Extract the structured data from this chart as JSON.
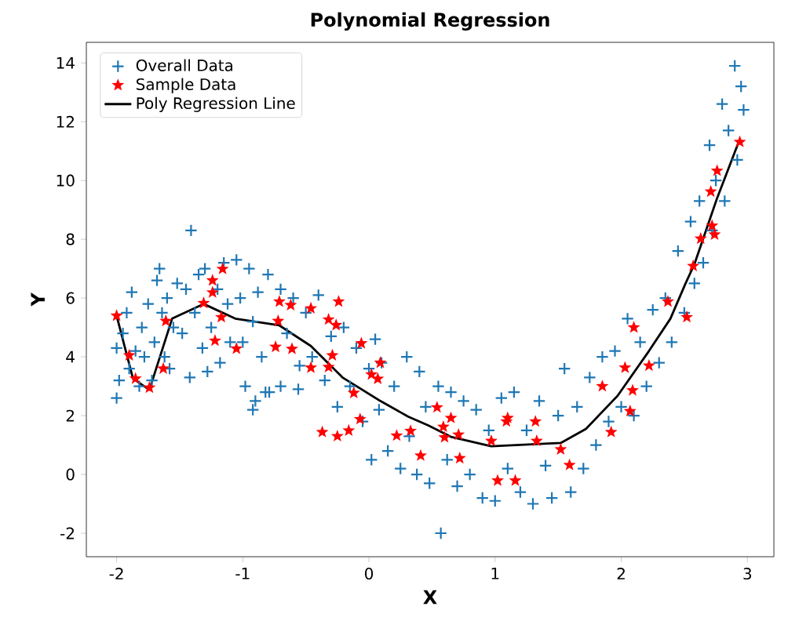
{
  "chart_data": {
    "type": "scatter",
    "title": "Polynomial Regression",
    "xlabel": "X",
    "ylabel": "Y",
    "xlim": [
      -2.24,
      3.21
    ],
    "ylim": [
      -2.8,
      14.7
    ],
    "xticks": [
      -2,
      -1,
      0,
      1,
      2,
      3
    ],
    "yticks": [
      -2,
      0,
      2,
      4,
      6,
      8,
      10,
      12,
      14
    ],
    "legend": "top left",
    "grid": false,
    "series": [
      {
        "name": "Overall Data",
        "type": "scatter",
        "marker": "cross",
        "color": "#1f77b4",
        "x": [
          -2.0,
          -2.0,
          -1.98,
          -1.95,
          -1.92,
          -1.9,
          -1.88,
          -1.85,
          -1.82,
          -1.8,
          -1.78,
          -1.75,
          -1.72,
          -1.7,
          -1.68,
          -1.66,
          -1.64,
          -1.62,
          -1.6,
          -1.58,
          -1.55,
          -1.52,
          -1.48,
          -1.45,
          -1.42,
          -1.41,
          -1.38,
          -1.35,
          -1.32,
          -1.3,
          -1.28,
          -1.25,
          -1.2,
          -1.18,
          -1.15,
          -1.12,
          -1.1,
          -1.05,
          -1.02,
          -1.0,
          -0.98,
          -0.95,
          -0.92,
          -0.92,
          -0.9,
          -0.88,
          -0.85,
          -0.82,
          -0.8,
          -0.79,
          -0.7,
          -0.7,
          -0.65,
          -0.6,
          -0.56,
          -0.55,
          -0.5,
          -0.45,
          -0.4,
          -0.35,
          -0.3,
          -0.25,
          -0.2,
          -0.15,
          -0.1,
          -0.05,
          0.0,
          0.02,
          0.05,
          0.08,
          0.1,
          0.15,
          0.2,
          0.25,
          0.3,
          0.32,
          0.38,
          0.4,
          0.45,
          0.48,
          0.55,
          0.57,
          0.62,
          0.65,
          0.7,
          0.75,
          0.8,
          0.85,
          0.9,
          0.95,
          1.0,
          1.05,
          1.1,
          1.15,
          1.2,
          1.25,
          1.3,
          1.35,
          1.4,
          1.45,
          1.5,
          1.55,
          1.6,
          1.65,
          1.7,
          1.75,
          1.8,
          1.85,
          1.9,
          1.95,
          2.0,
          2.05,
          2.1,
          2.15,
          2.2,
          2.25,
          2.3,
          2.35,
          2.4,
          2.45,
          2.5,
          2.55,
          2.58,
          2.62,
          2.65,
          2.7,
          2.72,
          2.75,
          2.8,
          2.82,
          2.85,
          2.9,
          2.92,
          2.95,
          2.97
        ],
        "values": [
          2.6,
          4.3,
          3.2,
          4.8,
          5.5,
          3.6,
          6.2,
          4.2,
          3.0,
          5.0,
          4.0,
          5.8,
          3.2,
          4.5,
          6.6,
          7.0,
          5.5,
          4.0,
          6.0,
          3.6,
          5.0,
          6.5,
          4.8,
          6.3,
          3.3,
          8.3,
          5.5,
          6.8,
          4.3,
          7.0,
          3.5,
          5.0,
          6.3,
          3.8,
          7.2,
          5.8,
          4.5,
          7.3,
          6.0,
          4.5,
          3.0,
          7.0,
          5.2,
          2.2,
          2.5,
          6.2,
          4.0,
          2.8,
          6.8,
          2.8,
          3.0,
          6.3,
          4.8,
          6.0,
          2.9,
          3.7,
          5.5,
          4.0,
          6.1,
          3.2,
          4.7,
          2.3,
          5.0,
          3.0,
          4.3,
          1.8,
          3.6,
          0.5,
          4.6,
          2.2,
          3.8,
          0.8,
          3.0,
          0.2,
          4.0,
          1.3,
          0.0,
          3.5,
          2.3,
          -0.3,
          3.0,
          -2.0,
          0.5,
          2.8,
          -0.4,
          2.5,
          0.0,
          2.2,
          -0.8,
          1.5,
          -0.9,
          2.6,
          0.2,
          2.8,
          -0.6,
          1.5,
          -1.0,
          2.5,
          0.3,
          -0.8,
          2.0,
          3.6,
          -0.6,
          2.3,
          0.2,
          3.3,
          1.0,
          4.0,
          1.8,
          4.2,
          2.3,
          5.3,
          2.0,
          4.5,
          3.0,
          5.6,
          3.8,
          6.0,
          4.5,
          7.6,
          5.5,
          8.6,
          6.5,
          9.3,
          7.2,
          11.2,
          8.3,
          10.0,
          12.6,
          9.3,
          11.7,
          13.9,
          10.7,
          13.2,
          12.4
        ]
      },
      {
        "name": "Sample Data",
        "type": "scatter",
        "marker": "star",
        "color": "#ff0000",
        "x": [
          -2.0,
          -1.9,
          -1.85,
          -1.74,
          -1.61,
          -1.63,
          -1.24,
          -1.31,
          -1.17,
          -1.22,
          -1.05,
          -1.16,
          -1.24,
          -0.71,
          -0.62,
          -0.72,
          -0.74,
          -0.61,
          -0.46,
          -0.24,
          -0.32,
          -0.26,
          -0.29,
          -0.46,
          -0.32,
          -0.06,
          0.09,
          0.02,
          0.07,
          -0.12,
          -0.07,
          -0.16,
          -0.37,
          -0.25,
          0.22,
          0.33,
          0.41,
          0.54,
          0.59,
          0.65,
          0.6,
          0.71,
          0.72,
          0.97,
          1.1,
          1.09,
          1.02,
          1.16,
          1.32,
          1.33,
          1.52,
          1.59,
          1.85,
          1.92,
          2.03,
          2.09,
          2.07,
          2.1,
          2.22,
          2.37,
          2.52,
          2.57,
          2.63,
          2.74,
          2.72,
          2.71,
          2.76,
          2.94
        ],
        "values": [
          5.4,
          4.05,
          3.26,
          2.95,
          5.22,
          3.6,
          6.19,
          5.83,
          5.35,
          4.55,
          4.28,
          6.99,
          6.6,
          5.88,
          5.76,
          5.22,
          4.34,
          4.27,
          5.65,
          5.88,
          5.27,
          5.08,
          4.05,
          3.63,
          3.65,
          4.46,
          3.8,
          3.4,
          3.25,
          2.77,
          1.88,
          1.49,
          1.44,
          1.3,
          1.32,
          1.48,
          0.64,
          2.28,
          1.62,
          1.92,
          1.26,
          1.35,
          0.55,
          1.14,
          1.92,
          1.8,
          -0.21,
          -0.21,
          1.8,
          1.14,
          0.85,
          0.32,
          3.0,
          1.44,
          3.63,
          2.86,
          2.15,
          5.0,
          3.7,
          5.88,
          5.35,
          7.09,
          8.02,
          8.16,
          8.46,
          9.62,
          10.33,
          11.31
        ]
      },
      {
        "name": "Poly Regression Line",
        "type": "line",
        "marker": "none",
        "line_style": "solid",
        "color": "#000000",
        "x": [
          -2.0,
          -1.87,
          -1.74,
          -1.56,
          -1.31,
          -1.06,
          -0.71,
          -0.46,
          -0.21,
          0.09,
          0.31,
          0.47,
          0.65,
          0.97,
          1.52,
          1.72,
          1.97,
          2.22,
          2.39,
          2.51,
          2.58,
          2.76,
          2.93
        ],
        "values": [
          5.4,
          3.26,
          2.88,
          5.3,
          5.8,
          5.3,
          5.07,
          4.37,
          3.3,
          2.5,
          1.97,
          1.67,
          1.28,
          0.96,
          1.07,
          1.55,
          2.67,
          4.2,
          5.3,
          6.5,
          7.15,
          9.4,
          11.3
        ]
      }
    ]
  }
}
